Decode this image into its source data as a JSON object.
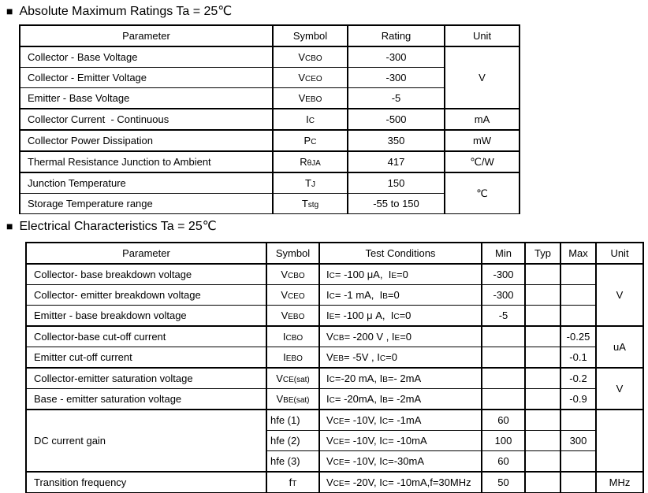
{
  "page": {
    "background": "#ffffff",
    "text_color": "#000000",
    "border_color": "#000000"
  },
  "sections": {
    "abs": {
      "bullet": "■",
      "title": "Absolute Maximum Ratings Ta = 25℃",
      "headers": [
        "Parameter",
        "Symbol",
        "Rating",
        "Unit"
      ],
      "rows": [
        {
          "p": "Collector - Base Voltage",
          "s": "V~CBO~",
          "r": "-300",
          "u": "V"
        },
        {
          "p": "Collector - Emitter Voltage",
          "s": "V~CEO~",
          "r": "-300"
        },
        {
          "p": "Emitter - Base Voltage",
          "s": "V~EBO~",
          "r": "-5"
        },
        {
          "p": "Collector Current  - Continuous",
          "s": "I~C~",
          "r": "-500",
          "u": "mA"
        },
        {
          "p": "Collector Power Dissipation",
          "s": "P~C~",
          "r": "350",
          "u": "mW"
        },
        {
          "p": "Thermal Resistance Junction to Ambient",
          "s": "R~θJA~",
          "r": "417",
          "u": "℃/W"
        },
        {
          "p": "Junction Temperature",
          "s": "T~J~",
          "r": "150",
          "u": "℃"
        },
        {
          "p": "Storage Temperature range",
          "s": "T~stg~",
          "r": "-55 to 150"
        }
      ]
    },
    "elec": {
      "bullet": "■",
      "title": "Electrical Characteristics Ta = 25℃",
      "headers": [
        "Parameter",
        "Symbol",
        "Test Conditions",
        "Min",
        "Typ",
        "Max",
        "Unit"
      ],
      "rows": [
        {
          "p": "Collector- base breakdown voltage",
          "s": "V~CBO~",
          "tc": "I~C~= -100 μA,  I~E~=0",
          "min": "-300",
          "typ": "",
          "max": "",
          "u": "V"
        },
        {
          "p": "Collector- emitter breakdown voltage",
          "s": "V~CEO~",
          "tc": "I~C~= -1 mA,  I~B~=0",
          "min": "-300",
          "typ": "",
          "max": ""
        },
        {
          "p": "Emitter - base breakdown voltage",
          "s": "V~EBO~",
          "tc": "I~E~= -100 μ A,  I~C~=0",
          "min": "-5",
          "typ": "",
          "max": ""
        },
        {
          "p": "Collector-base cut-off current",
          "s": "I~CBO~",
          "tc": "V~CB~= -200 V , I~E~=0",
          "min": "",
          "typ": "",
          "max": "-0.25",
          "u": "uA"
        },
        {
          "p": "Emitter cut-off current",
          "s": "I~EBO~",
          "tc": "V~EB~= -5V , I~C~=0",
          "min": "",
          "typ": "",
          "max": "-0.1"
        },
        {
          "p": "Collector-emitter saturation voltage",
          "s": "V~CE(sat)~",
          "tc": "I~C~=-20 mA, I~B~=- 2mA",
          "min": "",
          "typ": "",
          "max": "-0.2",
          "u": "V"
        },
        {
          "p": "Base - emitter saturation voltage",
          "s": "V~BE(sat)~",
          "tc": "I~C~= -20mA, I~B~= -2mA",
          "min": "",
          "typ": "",
          "max": "-0.9"
        },
        {
          "p": "DC current gain",
          "s": "hfe (1)",
          "tc": "V~CE~= -10V, I~C~= -1mA",
          "min": "60",
          "typ": "",
          "max": "",
          "u": ""
        },
        {
          "s": "hfe (2)",
          "tc": "V~CE~= -10V, I~C~= -10mA",
          "min": "100",
          "typ": "",
          "max": "300"
        },
        {
          "s": "hfe (3)",
          "tc": "V~CE~= -10V, I~C~=-30mA",
          "min": "60",
          "typ": "",
          "max": ""
        },
        {
          "p": "Transition frequency",
          "s": "f~T~",
          "tc": "V~CE~= -20V, I~C~= -10mA,f=30MHz",
          "min": "50",
          "typ": "",
          "max": "",
          "u": "MHz"
        }
      ]
    }
  }
}
